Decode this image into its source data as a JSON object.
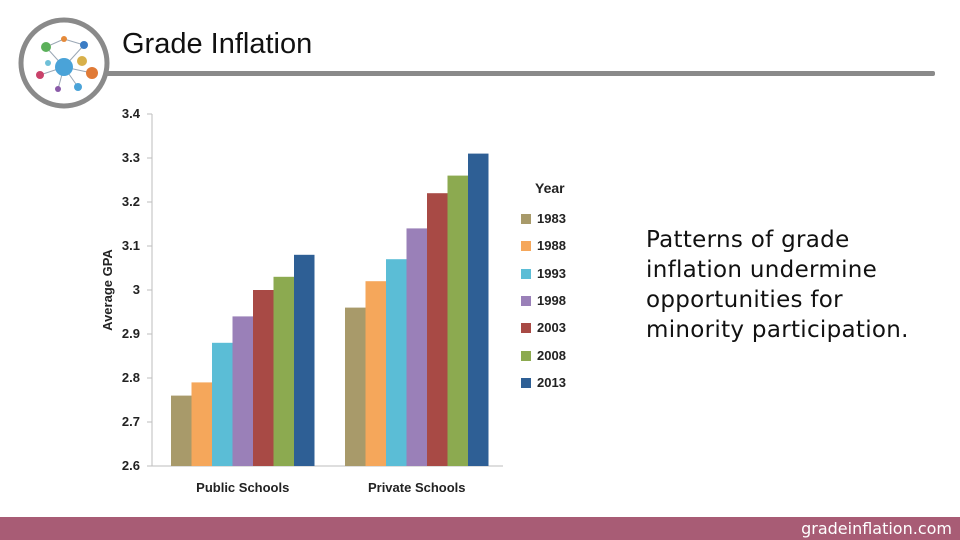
{
  "slide": {
    "title": "Grade Inflation",
    "caption": "Patterns of grade inflation undermine opportunities for minority participation.",
    "footer_url": "gradeinflation.com",
    "footer_color": "#a85c75"
  },
  "logo": {
    "icon": "network-nodes-icon"
  },
  "chart_data": {
    "type": "bar",
    "title": "",
    "xlabel": "",
    "ylabel": "Average GPA",
    "ylim": [
      2.6,
      3.4
    ],
    "yticks": [
      "2.6",
      "2.7",
      "2.8",
      "2.9",
      "3",
      "3.1",
      "3.2",
      "3.3",
      "3.4"
    ],
    "categories": [
      "Public Schools",
      "Private Schools"
    ],
    "legend_title": "Year",
    "legend_position": "right",
    "series": [
      {
        "name": "1983",
        "color": "#a89a6a",
        "values": [
          2.76,
          2.96
        ]
      },
      {
        "name": "1988",
        "color": "#f5a75b",
        "values": [
          2.79,
          3.02
        ]
      },
      {
        "name": "1993",
        "color": "#5bbdd6",
        "values": [
          2.88,
          3.07
        ]
      },
      {
        "name": "1998",
        "color": "#9a80b8",
        "values": [
          2.94,
          3.14
        ]
      },
      {
        "name": "2003",
        "color": "#a84a45",
        "values": [
          3.0,
          3.22
        ]
      },
      {
        "name": "2008",
        "color": "#8caa50",
        "values": [
          3.03,
          3.26
        ]
      },
      {
        "name": "2013",
        "color": "#2e5f95",
        "values": [
          3.08,
          3.31
        ]
      }
    ]
  }
}
